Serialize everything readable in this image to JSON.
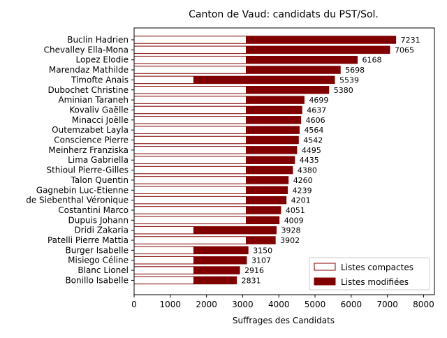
{
  "chart_data": {
    "type": "bar",
    "orientation": "horizontal",
    "stacked": true,
    "title": "Canton de Vaud: candidats du PST/Sol.",
    "xlabel": "Suffrages des Candidats",
    "ylabel": "",
    "xlim": [
      0,
      8300
    ],
    "xticks": [
      "0",
      "1000",
      "2000",
      "3000",
      "4000",
      "5000",
      "6000",
      "7000",
      "8000"
    ],
    "grid": false,
    "legend_position": "lower-right",
    "categories": [
      "Buclin Hadrien",
      "Chevalley Ella-Mona",
      "Lopez Elodie",
      "Marendaz Mathilde",
      "Timofte Anais",
      "Dubochet Christine",
      "Aminian Taraneh",
      "Kovaliv Gaëlle",
      "Minacci Joëlle",
      "Outemzabet Layla",
      "Conscience Pierre",
      "Meinherz Franziska",
      "Lima Gabriella",
      "Sthioul Pierre-Gilles",
      "Talon Quentin",
      "Gagnebin Luc-Etienne",
      "de Siebenthal Véronique",
      "Costantini Marco",
      "Dupuis Johann",
      "Dridi Zakaria",
      "Patelli Pierre Mattia",
      "Burger Isabelle",
      "Misiego Céline",
      "Blanc Lionel",
      "Bonillo Isabelle"
    ],
    "series": [
      {
        "name": "Listes compactes",
        "color": "#ffffff",
        "edgecolor": "#800000",
        "values": [
          3100,
          3100,
          3100,
          3100,
          1650,
          3100,
          3100,
          3100,
          3100,
          3100,
          3100,
          3100,
          3100,
          3100,
          3100,
          3100,
          3100,
          3100,
          3100,
          1650,
          3100,
          1650,
          1650,
          1650,
          1650
        ]
      },
      {
        "name": "Listes modifiées",
        "color": "#800000",
        "edgecolor": "#800000",
        "values": [
          4131,
          3965,
          3068,
          2598,
          3889,
          2280,
          1599,
          1537,
          1506,
          1464,
          1442,
          1395,
          1335,
          1280,
          1160,
          1139,
          1101,
          951,
          909,
          2278,
          802,
          1500,
          1457,
          1266,
          1181
        ]
      }
    ],
    "totals": [
      7231,
      7065,
      6168,
      5698,
      5539,
      5380,
      4699,
      4637,
      4606,
      4564,
      4542,
      4495,
      4435,
      4380,
      4260,
      4239,
      4201,
      4051,
      4009,
      3928,
      3902,
      3150,
      3107,
      2916,
      2831
    ],
    "total_labels": [
      "7231",
      "7065",
      "6168",
      "5698",
      "5539",
      "5380",
      "4699",
      "4637",
      "4606",
      "4564",
      "4542",
      "4495",
      "4435",
      "4380",
      "4260",
      "4239",
      "4201",
      "4051",
      "4009",
      "3928",
      "3902",
      "3150",
      "3107",
      "2916",
      "2831"
    ]
  }
}
